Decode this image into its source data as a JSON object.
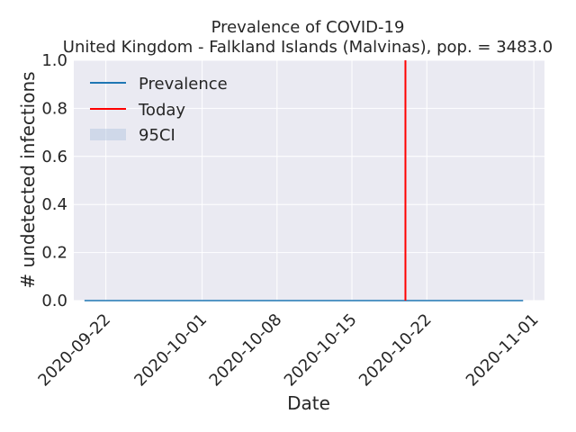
{
  "chart_data": {
    "type": "line",
    "title": "Prevalence of COVID-19",
    "subtitle": "United Kingdom - Falkland Islands (Malvinas), pop. = 3483.0",
    "xlabel": "Date",
    "ylabel": "# undetected infections",
    "xlim": [
      "2020-09-19",
      "2020-11-02"
    ],
    "ylim": [
      0,
      1
    ],
    "x_ticks": [
      "2020-09-22",
      "2020-10-01",
      "2020-10-08",
      "2020-10-15",
      "2020-10-22",
      "2020-11-01"
    ],
    "y_ticks": [
      "0.0",
      "0.2",
      "0.4",
      "0.6",
      "0.8",
      "1.0"
    ],
    "grid": true,
    "legend_position": "top-left",
    "series": [
      {
        "name": "Prevalence",
        "color": "#1f77b4",
        "x": [
          "2020-09-20",
          "2020-10-31"
        ],
        "y": [
          0,
          0
        ]
      }
    ],
    "band": {
      "name": "95CI",
      "color": "#b0c4de",
      "x": [
        "2020-09-20",
        "2020-10-31"
      ],
      "lower": [
        0,
        0
      ],
      "upper": [
        0,
        0
      ]
    },
    "vline": {
      "name": "Today",
      "color": "#ff0000",
      "x": "2020-10-20"
    }
  }
}
